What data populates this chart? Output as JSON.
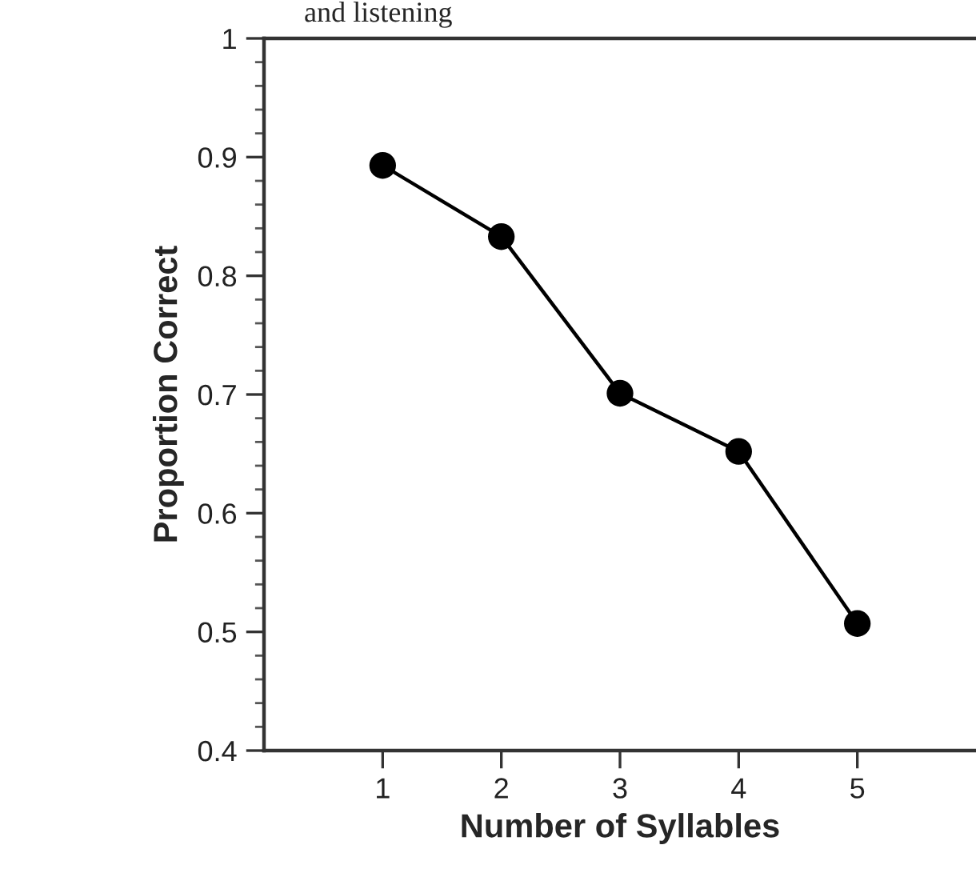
{
  "chart_data": {
    "type": "line",
    "annotations": [
      "and listening"
    ],
    "xlabel": "Number of Syllables",
    "ylabel": "Proportion Correct",
    "x": [
      1,
      2,
      3,
      4,
      5
    ],
    "series": [
      {
        "color": "#000000",
        "values": [
          0.893,
          0.833,
          0.701,
          0.652,
          0.507
        ]
      }
    ],
    "xlim": [
      0,
      6
    ],
    "xticks": [
      1,
      2,
      3,
      4,
      5
    ],
    "ylim": [
      0.4,
      1
    ],
    "yticks": [
      0.4,
      {
        "value": 0.42,
        "label": null
      },
      {
        "value": 0.44,
        "label": null
      },
      {
        "value": 0.46,
        "label": null
      },
      {
        "value": 0.48,
        "label": null
      },
      0.5,
      {
        "value": 0.52,
        "label": null
      },
      {
        "value": 0.54,
        "label": null
      },
      {
        "value": 0.56,
        "label": null
      },
      {
        "value": 0.58,
        "label": null
      },
      0.6,
      {
        "value": 0.62,
        "label": null
      },
      {
        "value": 0.64,
        "label": null
      },
      {
        "value": 0.66,
        "label": null
      },
      {
        "value": 0.68,
        "label": null
      },
      0.7,
      {
        "value": 0.72,
        "label": null
      },
      {
        "value": 0.74,
        "label": null
      },
      {
        "value": 0.76,
        "label": null
      },
      {
        "value": 0.78,
        "label": null
      },
      0.8,
      {
        "value": 0.82,
        "label": null
      },
      {
        "value": 0.84,
        "label": null
      },
      {
        "value": 0.86,
        "label": null
      },
      {
        "value": 0.88,
        "label": null
      },
      0.9,
      {
        "value": 0.92,
        "label": null
      },
      {
        "value": 0.94,
        "label": null
      },
      {
        "value": 0.96,
        "label": null
      },
      {
        "value": 0.98,
        "label": null
      },
      1
    ],
    "marker": "circle",
    "line_style": "solid",
    "grid": false,
    "legend": false
  }
}
